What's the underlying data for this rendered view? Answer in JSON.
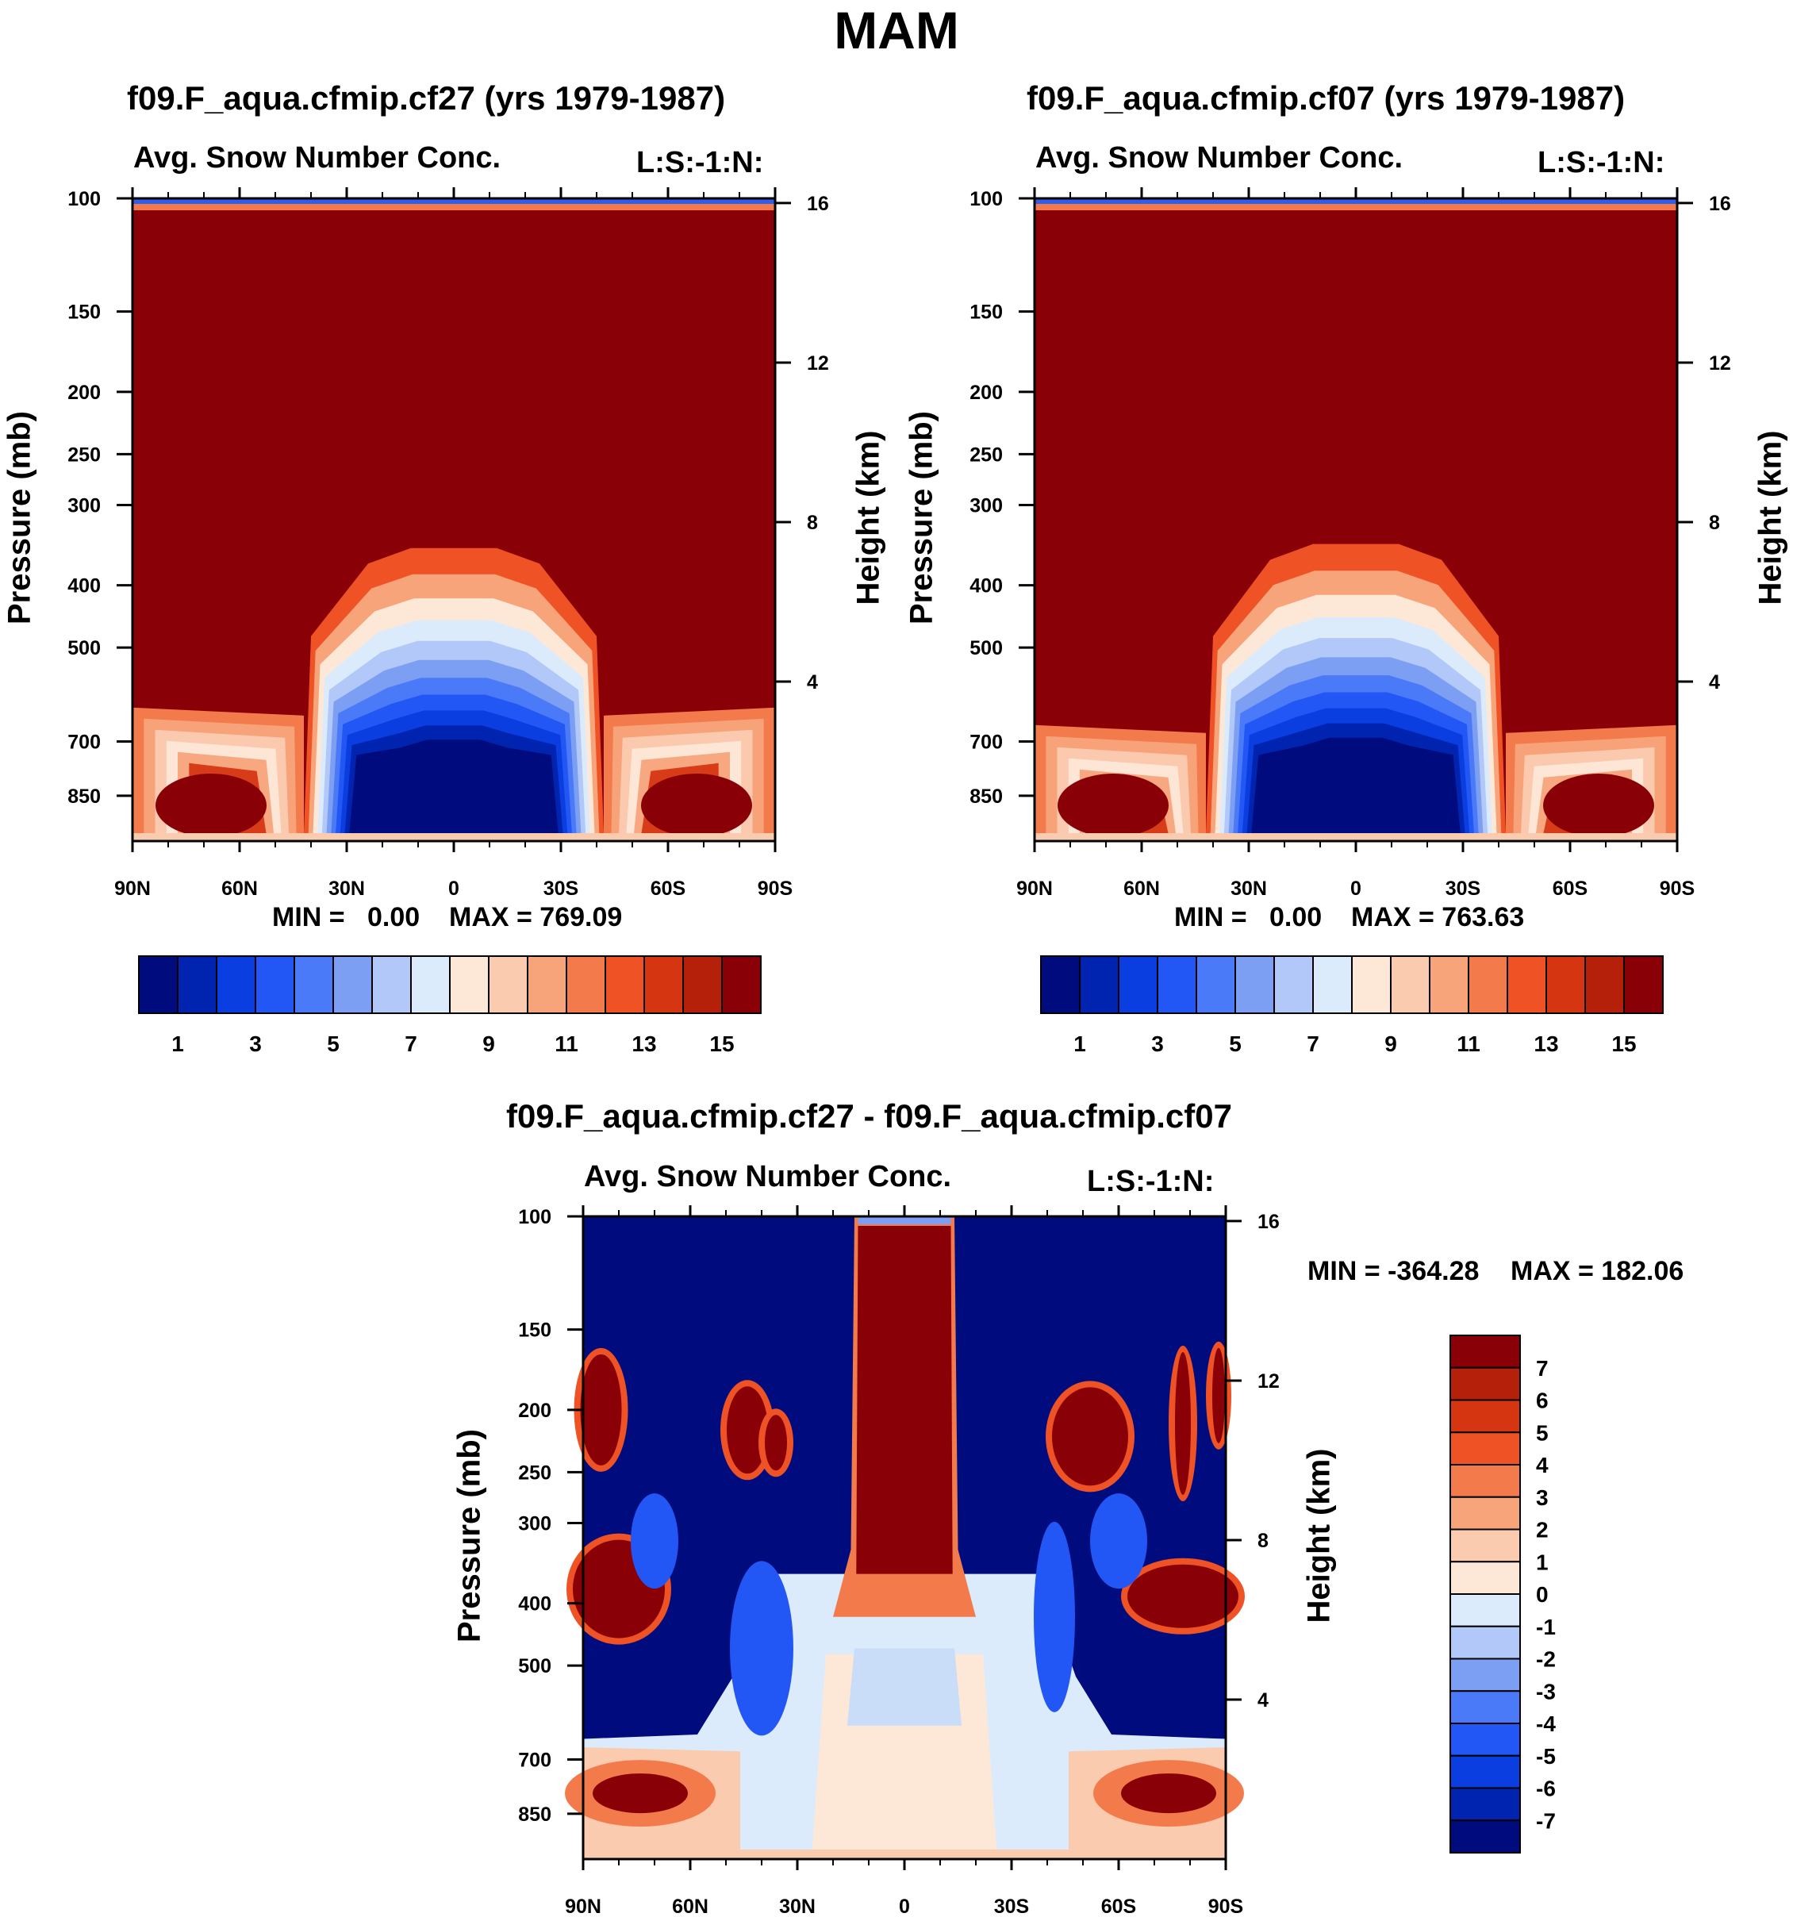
{
  "figure_title": "MAM",
  "chart_data": [
    {
      "type": "heatmap",
      "id": "p1",
      "title": "f09.F_aqua.cfmip.cf27 (yrs 1979-1987)",
      "subtitle": "Avg. Snow Number Conc.",
      "corner_label": "L:S:-1:N:",
      "xlabel": "",
      "ylabel": "Pressure (mb)",
      "y2label": "Height (km)",
      "x_ticks": [
        "90N",
        "60N",
        "30N",
        "0",
        "30S",
        "60S",
        "90S"
      ],
      "x_range": [
        90,
        -90
      ],
      "y_ticks": [
        "100",
        "150",
        "200",
        "250",
        "300",
        "400",
        "500",
        "700",
        "850"
      ],
      "y_tick_values": [
        100,
        150,
        200,
        250,
        300,
        400,
        500,
        700,
        850
      ],
      "y_range_mb": [
        100,
        1000
      ],
      "y2_ticks": [
        "16",
        "12",
        "8",
        "4"
      ],
      "y2_tick_values": [
        16,
        12,
        8,
        4
      ],
      "min_label": "MIN =   0.00",
      "max_label": "MAX = 769.09",
      "min": 0.0,
      "max": 769.09,
      "saturated_region_top_mb": 100,
      "tropical_dome_top_mb": 350,
      "midlat_boundary_mb": 620
    },
    {
      "type": "heatmap",
      "id": "p2",
      "title": "f09.F_aqua.cfmip.cf07 (yrs 1979-1987)",
      "subtitle": "Avg. Snow Number Conc.",
      "corner_label": "L:S:-1:N:",
      "xlabel": "",
      "ylabel": "Pressure (mb)",
      "y2label": "Height (km)",
      "x_ticks": [
        "90N",
        "60N",
        "30N",
        "0",
        "30S",
        "60S",
        "90S"
      ],
      "x_range": [
        90,
        -90
      ],
      "y_ticks": [
        "100",
        "150",
        "200",
        "250",
        "300",
        "400",
        "500",
        "700",
        "850"
      ],
      "y_tick_values": [
        100,
        150,
        200,
        250,
        300,
        400,
        500,
        700,
        850
      ],
      "y_range_mb": [
        100,
        1000
      ],
      "y2_ticks": [
        "16",
        "12",
        "8",
        "4"
      ],
      "y2_tick_values": [
        16,
        12,
        8,
        4
      ],
      "min_label": "MIN =   0.00",
      "max_label": "MAX = 763.63",
      "min": 0.0,
      "max": 763.63,
      "saturated_region_top_mb": 100,
      "tropical_dome_top_mb": 345,
      "midlat_boundary_mb": 660
    },
    {
      "type": "heatmap",
      "id": "p3",
      "title": "f09.F_aqua.cfmip.cf27 - f09.F_aqua.cfmip.cf07",
      "subtitle": "Avg. Snow Number Conc.",
      "corner_label": "L:S:-1:N:",
      "xlabel": "",
      "ylabel": "Pressure (mb)",
      "y2label": "Height (km)",
      "x_ticks": [
        "90N",
        "60N",
        "30N",
        "0",
        "30S",
        "60S",
        "90S"
      ],
      "x_range": [
        90,
        -90
      ],
      "y_ticks": [
        "100",
        "150",
        "200",
        "250",
        "300",
        "400",
        "500",
        "700",
        "850"
      ],
      "y_tick_values": [
        100,
        150,
        200,
        250,
        300,
        400,
        500,
        700,
        850
      ],
      "y_range_mb": [
        100,
        1000
      ],
      "y2_ticks": [
        "16",
        "12",
        "8",
        "4"
      ],
      "y2_tick_values": [
        16,
        12,
        8,
        4
      ],
      "min_label": "MIN = -364.28",
      "max_label": "MAX = 182.06",
      "min": -364.28,
      "max": 182.06
    }
  ],
  "colorbar_abs": {
    "labels": [
      "1",
      "3",
      "5",
      "7",
      "9",
      "11",
      "13",
      "15"
    ],
    "colors": [
      "#000c7e",
      "#0024b0",
      "#0a3ee0",
      "#2257f5",
      "#4a7af7",
      "#7c9ff3",
      "#b1c8f8",
      "#dcebfb",
      "#fde8d8",
      "#fbcbb0",
      "#f7a47b",
      "#f37a4b",
      "#ee5225",
      "#d63511",
      "#b5200a",
      "#890007"
    ]
  },
  "colorbar_diff": {
    "labels": [
      "7",
      "6",
      "5",
      "4",
      "3",
      "2",
      "1",
      "0",
      "-1",
      "-2",
      "-3",
      "-4",
      "-5",
      "-6",
      "-7"
    ],
    "colors": [
      "#890007",
      "#b5200a",
      "#d63511",
      "#ee5225",
      "#f37a4b",
      "#f7a47b",
      "#fbcbb0",
      "#fde8d8",
      "#dcebfb",
      "#b1c8f8",
      "#7c9ff3",
      "#4a7af7",
      "#2257f5",
      "#0a3ee0",
      "#0024b0",
      "#000c7e"
    ]
  }
}
